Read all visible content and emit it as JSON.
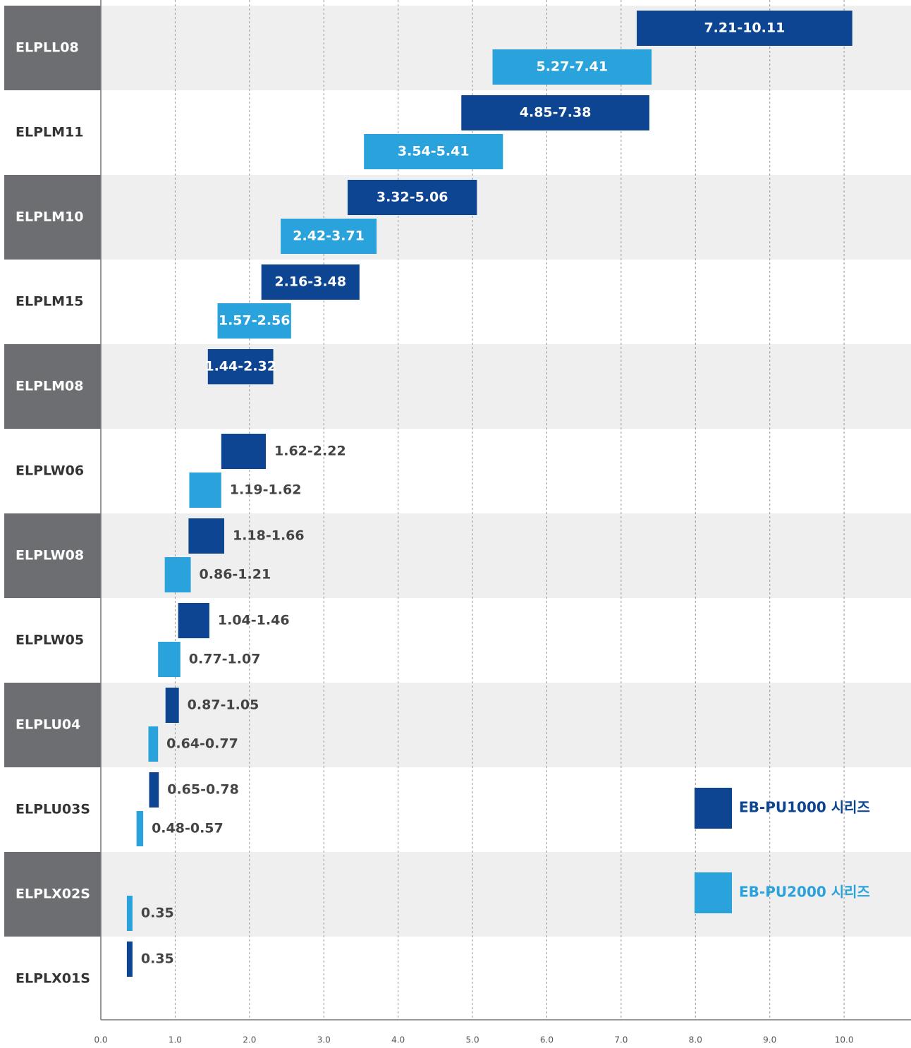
{
  "chart_data": {
    "type": "range-bar",
    "orientation": "horizontal",
    "categories": [
      "ELPLL08",
      "ELPLM11",
      "ELPLM10",
      "ELPLM15",
      "ELPLM08",
      "ELPLW06",
      "ELPLW08",
      "ELPLW05",
      "ELPLU04",
      "ELPLU03S",
      "ELPLX02S",
      "ELPLX01S"
    ],
    "series": [
      {
        "name": "EB-PU1000 시리즈",
        "color": "#0d4592",
        "values": [
          [
            7.21,
            10.11
          ],
          [
            4.85,
            7.38
          ],
          [
            3.32,
            5.06
          ],
          [
            2.16,
            3.48
          ],
          [
            1.44,
            2.32
          ],
          [
            1.62,
            2.22
          ],
          [
            1.18,
            1.66
          ],
          [
            1.04,
            1.46
          ],
          [
            0.87,
            1.05
          ],
          [
            0.65,
            0.78
          ],
          null,
          [
            0.35,
            0.35
          ]
        ],
        "value_labels": [
          "7.21-10.11",
          "4.85-7.38",
          "3.32-5.06",
          "2.16-3.48",
          "1.44-2.32",
          "1.62-2.22",
          "1.18-1.66",
          "1.04-1.46",
          "0.87-1.05",
          "0.65-0.78",
          null,
          "0.35"
        ]
      },
      {
        "name": "EB-PU2000 시리즈",
        "color": "#2aa3dc",
        "values": [
          [
            5.27,
            7.41
          ],
          [
            3.54,
            5.41
          ],
          [
            2.42,
            3.71
          ],
          [
            1.57,
            2.56
          ],
          null,
          [
            1.19,
            1.62
          ],
          [
            0.86,
            1.21
          ],
          [
            0.77,
            1.07
          ],
          [
            0.64,
            0.77
          ],
          [
            0.48,
            0.57
          ],
          [
            0.35,
            0.35
          ],
          null
        ],
        "value_labels": [
          "5.27-7.41",
          "3.54-5.41",
          "2.42-3.71",
          "1.57-2.56",
          null,
          "1.19-1.62",
          "0.86-1.21",
          "0.77-1.07",
          "0.64-0.77",
          "0.48-0.57",
          "0.35",
          null
        ]
      }
    ],
    "xlim": [
      0,
      10.9
    ],
    "xticks": [
      {
        "value": 0,
        "label": "0.0"
      },
      {
        "value": 1,
        "label": "1.0"
      },
      {
        "value": 2,
        "label": "2.0"
      },
      {
        "value": 3,
        "label": "3.0"
      },
      {
        "value": 4,
        "label": "4.0"
      },
      {
        "value": 5,
        "label": "5.0"
      },
      {
        "value": 6,
        "label": "6.0"
      },
      {
        "value": 7,
        "label": "7.0"
      },
      {
        "value": 8,
        "label": "8.0"
      },
      {
        "value": 9,
        "label": "9.0"
      },
      {
        "value": 10,
        "label": "10.0"
      }
    ],
    "grid": true,
    "legend": "lower right"
  }
}
